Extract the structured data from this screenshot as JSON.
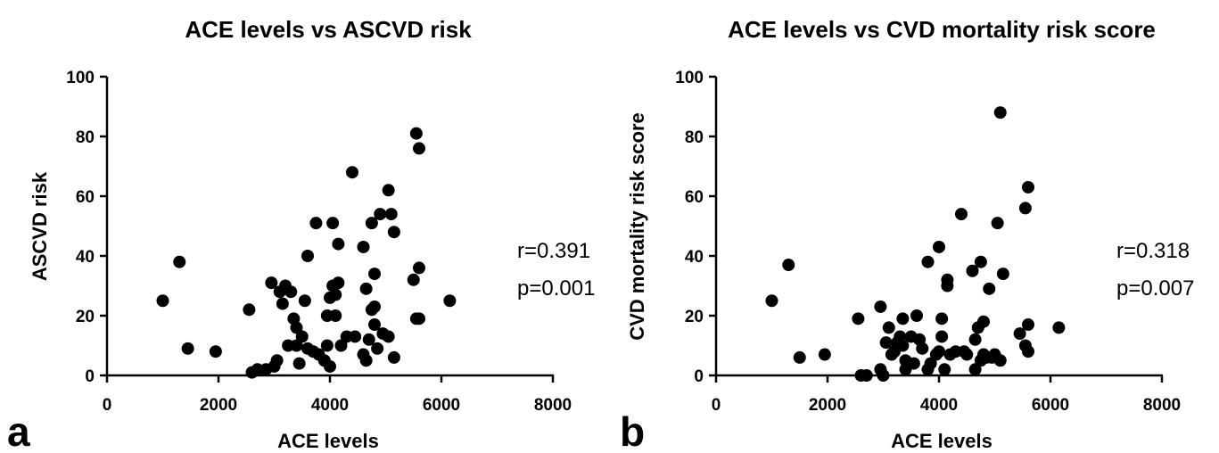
{
  "chart_data": [
    {
      "type": "scatter",
      "panel": "a",
      "title": "ACE levels vs ASCVD risk",
      "xlabel": "ACE levels",
      "ylabel": "ASCVD risk",
      "xlim": [
        0,
        8000
      ],
      "ylim": [
        0,
        100
      ],
      "xticks": [
        0,
        2000,
        4000,
        6000,
        8000
      ],
      "yticks": [
        0,
        20,
        40,
        60,
        80,
        100
      ],
      "grid": false,
      "annotations": [
        "r=0.391",
        "p=0.001"
      ],
      "marker_color": "#000000",
      "points": [
        [
          1000,
          25
        ],
        [
          1300,
          38
        ],
        [
          1450,
          9
        ],
        [
          1950,
          8
        ],
        [
          2550,
          22
        ],
        [
          2600,
          1
        ],
        [
          2700,
          2
        ],
        [
          2850,
          2
        ],
        [
          2950,
          31
        ],
        [
          3000,
          3
        ],
        [
          3050,
          5
        ],
        [
          3100,
          28
        ],
        [
          3150,
          24
        ],
        [
          3200,
          30
        ],
        [
          3250,
          10
        ],
        [
          3300,
          28
        ],
        [
          3350,
          19
        ],
        [
          3400,
          16
        ],
        [
          3400,
          10
        ],
        [
          3450,
          4
        ],
        [
          3500,
          13
        ],
        [
          3550,
          25
        ],
        [
          3600,
          40
        ],
        [
          3600,
          9
        ],
        [
          3700,
          8
        ],
        [
          3750,
          51
        ],
        [
          3800,
          7
        ],
        [
          3900,
          5
        ],
        [
          3950,
          10
        ],
        [
          3950,
          20
        ],
        [
          4000,
          3
        ],
        [
          4000,
          26
        ],
        [
          4050,
          30
        ],
        [
          4050,
          51
        ],
        [
          4100,
          20
        ],
        [
          4100,
          27
        ],
        [
          4150,
          31
        ],
        [
          4150,
          44
        ],
        [
          4200,
          10
        ],
        [
          4300,
          13
        ],
        [
          4400,
          68
        ],
        [
          4450,
          13
        ],
        [
          4600,
          43
        ],
        [
          4600,
          7
        ],
        [
          4650,
          5
        ],
        [
          4650,
          29
        ],
        [
          4700,
          12
        ],
        [
          4750,
          22
        ],
        [
          4750,
          51
        ],
        [
          4800,
          17
        ],
        [
          4800,
          34
        ],
        [
          4800,
          23
        ],
        [
          4850,
          9
        ],
        [
          4900,
          54
        ],
        [
          4950,
          14
        ],
        [
          5050,
          62
        ],
        [
          5050,
          13
        ],
        [
          5100,
          54
        ],
        [
          5150,
          48
        ],
        [
          5150,
          6
        ],
        [
          5500,
          32
        ],
        [
          5550,
          81
        ],
        [
          5550,
          19
        ],
        [
          5600,
          76
        ],
        [
          5600,
          36
        ],
        [
          5600,
          19
        ],
        [
          6150,
          25
        ]
      ]
    },
    {
      "type": "scatter",
      "panel": "b",
      "title": "ACE levels vs CVD mortality risk score",
      "xlabel": "ACE levels",
      "ylabel": "CVD mortality risk score",
      "xlim": [
        0,
        8000
      ],
      "ylim": [
        0,
        100
      ],
      "xticks": [
        0,
        2000,
        4000,
        6000,
        8000
      ],
      "yticks": [
        0,
        20,
        40,
        60,
        80,
        100
      ],
      "grid": false,
      "annotations": [
        "r=0.318",
        "p=0.007"
      ],
      "marker_color": "#000000",
      "points": [
        [
          1000,
          25
        ],
        [
          1300,
          37
        ],
        [
          1500,
          6
        ],
        [
          1950,
          7
        ],
        [
          2550,
          19
        ],
        [
          2600,
          0
        ],
        [
          2700,
          0
        ],
        [
          2950,
          23
        ],
        [
          2950,
          2
        ],
        [
          3000,
          0
        ],
        [
          3050,
          11
        ],
        [
          3100,
          16
        ],
        [
          3150,
          7
        ],
        [
          3200,
          8
        ],
        [
          3250,
          11
        ],
        [
          3300,
          13
        ],
        [
          3350,
          10
        ],
        [
          3350,
          19
        ],
        [
          3400,
          5
        ],
        [
          3400,
          2
        ],
        [
          3500,
          13
        ],
        [
          3550,
          4
        ],
        [
          3600,
          20
        ],
        [
          3650,
          12
        ],
        [
          3700,
          9
        ],
        [
          3800,
          38
        ],
        [
          3800,
          2
        ],
        [
          3850,
          4
        ],
        [
          3950,
          7
        ],
        [
          4000,
          43
        ],
        [
          4000,
          8
        ],
        [
          4050,
          19
        ],
        [
          4050,
          13
        ],
        [
          4100,
          2
        ],
        [
          4150,
          32
        ],
        [
          4150,
          30
        ],
        [
          4200,
          7
        ],
        [
          4300,
          8
        ],
        [
          4400,
          54
        ],
        [
          4450,
          8
        ],
        [
          4500,
          7
        ],
        [
          4600,
          35
        ],
        [
          4650,
          2
        ],
        [
          4650,
          12
        ],
        [
          4700,
          16
        ],
        [
          4750,
          38
        ],
        [
          4750,
          5
        ],
        [
          4800,
          18
        ],
        [
          4800,
          7
        ],
        [
          4850,
          6
        ],
        [
          4900,
          29
        ],
        [
          4950,
          6
        ],
        [
          5000,
          7
        ],
        [
          5050,
          51
        ],
        [
          5100,
          88
        ],
        [
          5100,
          5
        ],
        [
          5150,
          34
        ],
        [
          5450,
          14
        ],
        [
          5550,
          56
        ],
        [
          5550,
          10
        ],
        [
          5600,
          63
        ],
        [
          5600,
          17
        ],
        [
          5600,
          8
        ],
        [
          6150,
          16
        ]
      ]
    }
  ]
}
